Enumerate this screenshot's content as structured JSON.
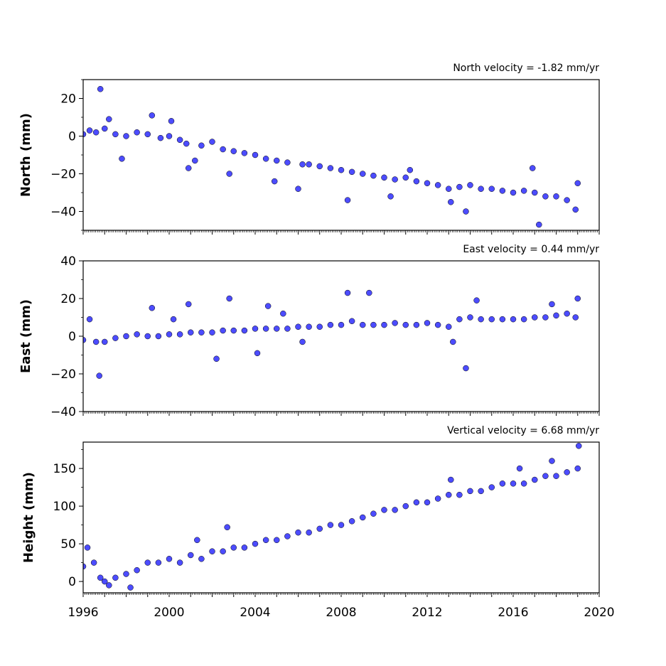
{
  "chart_data": [
    {
      "type": "scatter",
      "title": "North velocity = -1.82 mm/yr",
      "ylabel": "North (mm)",
      "xlim": [
        1996,
        2020
      ],
      "ylim": [
        -50,
        30
      ],
      "yticks": [
        20,
        0,
        -20,
        -40
      ],
      "ytick_labels": [
        "20",
        "0",
        "−20",
        "−40"
      ],
      "series": [
        {
          "values": [
            [
              1996.0,
              1
            ],
            [
              1996.3,
              3
            ],
            [
              1996.6,
              2
            ],
            [
              1996.8,
              25
            ],
            [
              1997.0,
              4
            ],
            [
              1997.2,
              9
            ],
            [
              1997.5,
              1
            ],
            [
              1997.8,
              -12
            ],
            [
              1998.0,
              0
            ],
            [
              1998.5,
              2
            ],
            [
              1999.0,
              1
            ],
            [
              1999.2,
              11
            ],
            [
              1999.6,
              -1
            ],
            [
              2000.0,
              0
            ],
            [
              2000.1,
              8
            ],
            [
              2000.5,
              -2
            ],
            [
              2000.8,
              -4
            ],
            [
              2000.9,
              -17
            ],
            [
              2001.2,
              -13
            ],
            [
              2001.5,
              -5
            ],
            [
              2002.0,
              -3
            ],
            [
              2002.5,
              -7
            ],
            [
              2002.8,
              -20
            ],
            [
              2003.0,
              -8
            ],
            [
              2003.5,
              -9
            ],
            [
              2004.0,
              -10
            ],
            [
              2004.5,
              -12
            ],
            [
              2004.9,
              -24
            ],
            [
              2005.0,
              -13
            ],
            [
              2005.5,
              -14
            ],
            [
              2006.0,
              -28
            ],
            [
              2006.2,
              -15
            ],
            [
              2006.5,
              -15
            ],
            [
              2007.0,
              -16
            ],
            [
              2007.5,
              -17
            ],
            [
              2008.0,
              -18
            ],
            [
              2008.3,
              -34
            ],
            [
              2008.5,
              -19
            ],
            [
              2009.0,
              -20
            ],
            [
              2009.5,
              -21
            ],
            [
              2010.0,
              -22
            ],
            [
              2010.3,
              -32
            ],
            [
              2010.5,
              -23
            ],
            [
              2011.0,
              -22
            ],
            [
              2011.2,
              -18
            ],
            [
              2011.5,
              -24
            ],
            [
              2012.0,
              -25
            ],
            [
              2012.5,
              -26
            ],
            [
              2013.0,
              -28
            ],
            [
              2013.1,
              -35
            ],
            [
              2013.5,
              -27
            ],
            [
              2013.8,
              -40
            ],
            [
              2014.0,
              -26
            ],
            [
              2014.5,
              -28
            ],
            [
              2015.0,
              -28
            ],
            [
              2015.5,
              -29
            ],
            [
              2016.0,
              -30
            ],
            [
              2016.5,
              -29
            ],
            [
              2016.9,
              -17
            ],
            [
              2017.0,
              -30
            ],
            [
              2017.2,
              -47
            ],
            [
              2017.5,
              -32
            ],
            [
              2018.0,
              -32
            ],
            [
              2018.5,
              -34
            ],
            [
              2018.9,
              -39
            ],
            [
              2019.0,
              -25
            ]
          ]
        }
      ]
    },
    {
      "type": "scatter",
      "title": "East velocity = 0.44 mm/yr",
      "ylabel": "East (mm)",
      "xlim": [
        1996,
        2020
      ],
      "ylim": [
        -40,
        40
      ],
      "yticks": [
        40,
        20,
        0,
        -20,
        -40
      ],
      "ytick_labels": [
        "40",
        "20",
        "0",
        "−20",
        "−40"
      ],
      "series": [
        {
          "values": [
            [
              1996.0,
              -2
            ],
            [
              1996.3,
              9
            ],
            [
              1996.6,
              -3
            ],
            [
              1996.75,
              -21
            ],
            [
              1997.0,
              -3
            ],
            [
              1997.5,
              -1
            ],
            [
              1998.0,
              0
            ],
            [
              1998.5,
              1
            ],
            [
              1999.0,
              0
            ],
            [
              1999.2,
              15
            ],
            [
              1999.5,
              0
            ],
            [
              2000.0,
              1
            ],
            [
              2000.2,
              9
            ],
            [
              2000.5,
              1
            ],
            [
              2000.9,
              17
            ],
            [
              2001.0,
              2
            ],
            [
              2001.5,
              2
            ],
            [
              2002.0,
              2
            ],
            [
              2002.2,
              -12
            ],
            [
              2002.5,
              3
            ],
            [
              2002.8,
              20
            ],
            [
              2003.0,
              3
            ],
            [
              2003.5,
              3
            ],
            [
              2004.0,
              4
            ],
            [
              2004.1,
              -9
            ],
            [
              2004.5,
              4
            ],
            [
              2004.6,
              16
            ],
            [
              2005.0,
              4
            ],
            [
              2005.3,
              12
            ],
            [
              2005.5,
              4
            ],
            [
              2006.0,
              5
            ],
            [
              2006.2,
              -3
            ],
            [
              2006.5,
              5
            ],
            [
              2007.0,
              5
            ],
            [
              2007.5,
              6
            ],
            [
              2008.0,
              6
            ],
            [
              2008.3,
              23
            ],
            [
              2008.5,
              8
            ],
            [
              2009.0,
              6
            ],
            [
              2009.3,
              23
            ],
            [
              2009.5,
              6
            ],
            [
              2010.0,
              6
            ],
            [
              2010.5,
              7
            ],
            [
              2011.0,
              6
            ],
            [
              2011.5,
              6
            ],
            [
              2012.0,
              7
            ],
            [
              2012.5,
              6
            ],
            [
              2013.0,
              5
            ],
            [
              2013.2,
              -3
            ],
            [
              2013.5,
              9
            ],
            [
              2013.8,
              -17
            ],
            [
              2014.0,
              10
            ],
            [
              2014.3,
              19
            ],
            [
              2014.5,
              9
            ],
            [
              2015.0,
              9
            ],
            [
              2015.5,
              9
            ],
            [
              2016.0,
              9
            ],
            [
              2016.5,
              9
            ],
            [
              2017.0,
              10
            ],
            [
              2017.5,
              10
            ],
            [
              2017.8,
              17
            ],
            [
              2018.0,
              11
            ],
            [
              2018.5,
              12
            ],
            [
              2018.9,
              10
            ],
            [
              2019.0,
              20
            ]
          ]
        }
      ]
    },
    {
      "type": "scatter",
      "title": "Vertical velocity = 6.68 mm/yr",
      "ylabel": "Height (mm)",
      "xlim": [
        1996,
        2020
      ],
      "ylim": [
        -15,
        185
      ],
      "yticks": [
        150,
        100,
        50,
        0
      ],
      "ytick_labels": [
        "150",
        "100",
        "50",
        "0"
      ],
      "series": [
        {
          "values": [
            [
              1996.0,
              20
            ],
            [
              1996.2,
              45
            ],
            [
              1996.5,
              25
            ],
            [
              1996.8,
              5
            ],
            [
              1997.0,
              0
            ],
            [
              1997.2,
              -5
            ],
            [
              1997.5,
              5
            ],
            [
              1998.0,
              10
            ],
            [
              1998.2,
              -8
            ],
            [
              1998.5,
              15
            ],
            [
              1999.0,
              25
            ],
            [
              1999.5,
              25
            ],
            [
              2000.0,
              30
            ],
            [
              2000.5,
              25
            ],
            [
              2001.0,
              35
            ],
            [
              2001.3,
              55
            ],
            [
              2001.5,
              30
            ],
            [
              2002.0,
              40
            ],
            [
              2002.5,
              40
            ],
            [
              2002.7,
              72
            ],
            [
              2003.0,
              45
            ],
            [
              2003.5,
              45
            ],
            [
              2004.0,
              50
            ],
            [
              2004.5,
              55
            ],
            [
              2005.0,
              55
            ],
            [
              2005.5,
              60
            ],
            [
              2006.0,
              65
            ],
            [
              2006.5,
              65
            ],
            [
              2007.0,
              70
            ],
            [
              2007.5,
              75
            ],
            [
              2008.0,
              75
            ],
            [
              2008.5,
              80
            ],
            [
              2009.0,
              85
            ],
            [
              2009.5,
              90
            ],
            [
              2010.0,
              95
            ],
            [
              2010.5,
              95
            ],
            [
              2011.0,
              100
            ],
            [
              2011.5,
              105
            ],
            [
              2012.0,
              105
            ],
            [
              2012.5,
              110
            ],
            [
              2013.0,
              115
            ],
            [
              2013.1,
              135
            ],
            [
              2013.5,
              115
            ],
            [
              2014.0,
              120
            ],
            [
              2014.5,
              120
            ],
            [
              2015.0,
              125
            ],
            [
              2015.5,
              130
            ],
            [
              2016.0,
              130
            ],
            [
              2016.3,
              150
            ],
            [
              2016.5,
              130
            ],
            [
              2017.0,
              135
            ],
            [
              2017.5,
              140
            ],
            [
              2017.8,
              160
            ],
            [
              2018.0,
              140
            ],
            [
              2018.5,
              145
            ],
            [
              2019.0,
              150
            ],
            [
              2019.05,
              180
            ]
          ]
        }
      ]
    }
  ],
  "xaxis": {
    "ticks": [
      1996,
      2000,
      2004,
      2008,
      2012,
      2016,
      2020
    ],
    "tick_labels": [
      "1996",
      "2000",
      "2004",
      "2008",
      "2012",
      "2016",
      "2020"
    ]
  },
  "colors": {
    "marker_fill": "#4c4cff",
    "marker_edge": "#000000",
    "axes": "#000000",
    "background": "#ffffff"
  }
}
